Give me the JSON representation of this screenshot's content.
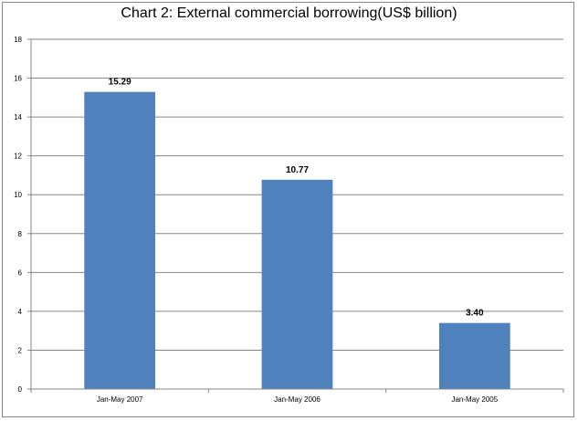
{
  "chart_data": {
    "type": "bar",
    "title": "Chart 2: External commercial borrowing(US$ billion)",
    "xlabel": "",
    "ylabel": "",
    "categories": [
      "Jan-May 2007",
      "Jan-May 2006",
      "Jan-May 2005"
    ],
    "values": [
      15.29,
      10.77,
      3.4
    ],
    "data_labels": [
      "15.29",
      "10.77",
      "3.40"
    ],
    "ylim": [
      0,
      18
    ],
    "yticks": [
      0,
      2,
      4,
      6,
      8,
      10,
      12,
      14,
      16,
      18
    ],
    "grid": true,
    "legend": "none",
    "colors": {
      "bar": "#4F81BD",
      "grid": "#868686",
      "axis": "#868686"
    }
  }
}
